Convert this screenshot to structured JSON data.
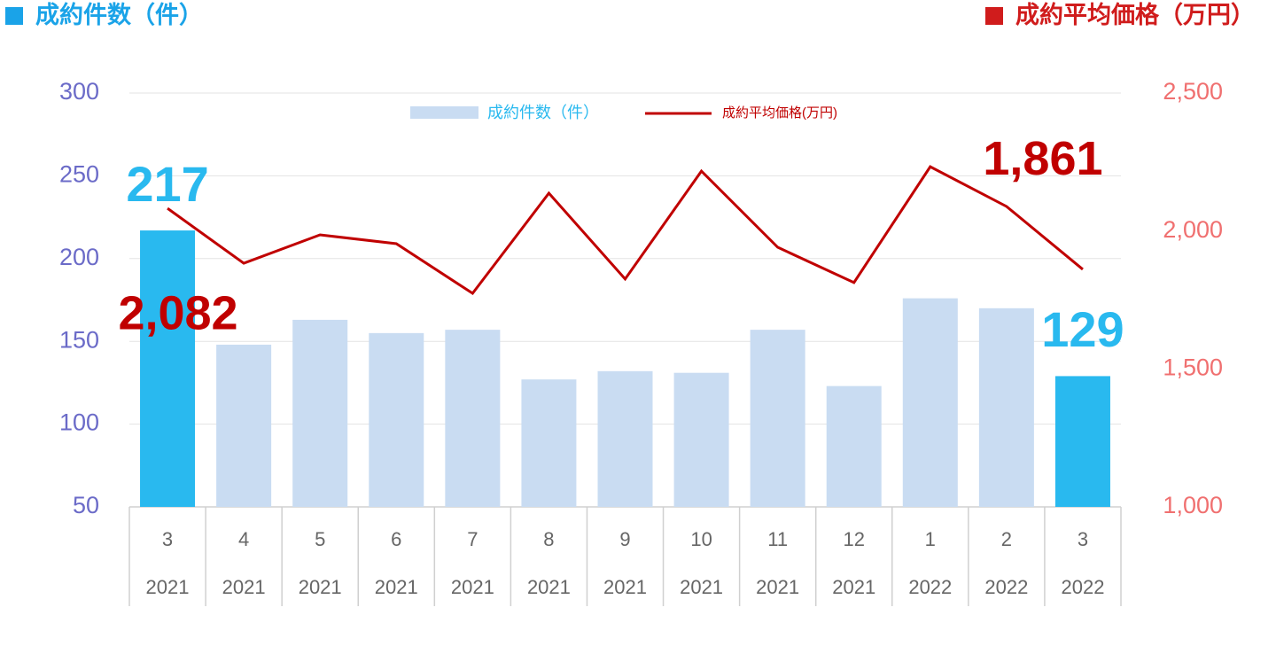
{
  "chart_data": {
    "type": "bar_line",
    "title": "成約件数（件）",
    "title_color": "#1aa3e8",
    "title_right": "成約平均価格（万円）",
    "title_right_color": "#d01c1c",
    "categories": [
      "3",
      "4",
      "5",
      "6",
      "7",
      "8",
      "9",
      "10",
      "11",
      "12",
      "1",
      "2",
      "3"
    ],
    "category_years": [
      "2021",
      "2021",
      "2021",
      "2021",
      "2021",
      "2021",
      "2021",
      "2021",
      "2021",
      "2021",
      "2022",
      "2022",
      "2022"
    ],
    "series": [
      {
        "name": "成約件数（件）",
        "type": "bar",
        "color": "#c9dcf2",
        "colors": [
          "#29b9ef",
          "#c9dcf2",
          "#c9dcf2",
          "#c9dcf2",
          "#c9dcf2",
          "#c9dcf2",
          "#c9dcf2",
          "#c9dcf2",
          "#c9dcf2",
          "#c9dcf2",
          "#c9dcf2",
          "#c9dcf2",
          "#29b9ef"
        ],
        "label_color": "#29b9ef",
        "values": [
          217,
          148,
          163,
          155,
          157,
          127,
          132,
          131,
          157,
          123,
          176,
          170,
          129
        ],
        "value_labels": [
          "217",
          null,
          null,
          null,
          null,
          null,
          null,
          null,
          null,
          null,
          null,
          null,
          "129"
        ]
      },
      {
        "name": "成約平均価格(万円)",
        "type": "line",
        "axis": "y2",
        "color": "#c00000",
        "values": [
          2082,
          1883,
          1986,
          1954,
          1774,
          2137,
          1826,
          2217,
          1941,
          1813,
          2233,
          2089,
          1861
        ],
        "value_labels": [
          "2,082",
          null,
          null,
          null,
          null,
          null,
          null,
          null,
          null,
          null,
          null,
          null,
          "1,861"
        ]
      }
    ],
    "ylim": [
      50,
      300
    ],
    "yticks": [
      50,
      100,
      150,
      200,
      250,
      300
    ],
    "y_color": "#6b6bc8",
    "y2lim": [
      1000,
      2500
    ],
    "y2ticks": [
      {
        "value": 1000,
        "label": "1,000"
      },
      {
        "value": 1500,
        "label": "1,500"
      },
      {
        "value": 2000,
        "label": "2,000"
      },
      {
        "value": 2500,
        "label": "2,500"
      }
    ],
    "y2_color": "#f07070",
    "grid": true
  }
}
